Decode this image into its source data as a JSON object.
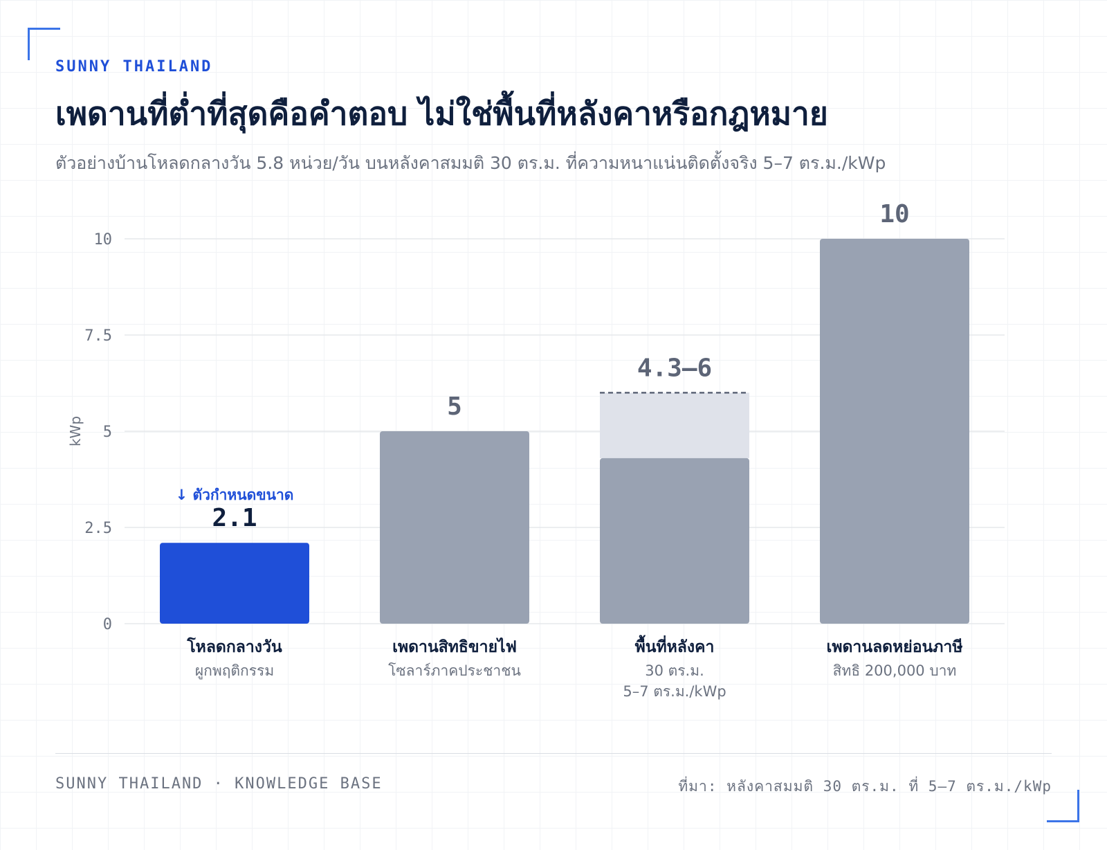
{
  "brand": "SUNNY THAILAND",
  "title": "เพดานที่ต่ำที่สุดคือคำตอบ ไม่ใช่พื้นที่หลังคาหรือกฎหมาย",
  "subtitle": "ตัวอย่างบ้านโหลดกลางวัน 5.8 หน่วย/วัน บนหลังคาสมมติ 30 ตร.ม. ที่ความหนาแน่นติดตั้งจริง 5–7 ตร.ม./kWp",
  "footer": {
    "left": "SUNNY THAILAND · KNOWLEDGE BASE",
    "right": "ที่มา: หลังคาสมมติ 30 ตร.ม. ที่ 5–7 ตร.ม./kWp"
  },
  "colors": {
    "highlight": "#1f4fd8",
    "bar": "#99a2b2",
    "range_band": "#dfe2ea",
    "grid": "#e6e8ec",
    "value_label": "#5d6577"
  },
  "chart_data": {
    "type": "bar",
    "ylabel": "kWp",
    "ylim": [
      0,
      10
    ],
    "yticks": [
      {
        "value": 0,
        "label": "0"
      },
      {
        "value": 2.5,
        "label": "2.5"
      },
      {
        "value": 5,
        "label": "5"
      },
      {
        "value": 7.5,
        "label": "7.5"
      },
      {
        "value": 10,
        "label": "10"
      }
    ],
    "grid": true,
    "bars": [
      {
        "category": "โหลดกลางวัน",
        "sublabel": [
          "ผูกพฤติกรรม"
        ],
        "value": 2.1,
        "value_label": "2.1",
        "highlight": true,
        "annotation": "↓ ตัวกำหนดขนาด"
      },
      {
        "category": "เพดานสิทธิขายไฟ",
        "sublabel": [
          "โซลาร์ภาคประชาชน"
        ],
        "value": 5,
        "value_label": "5",
        "highlight": false
      },
      {
        "category": "พื้นที่หลังคา",
        "sublabel": [
          "30 ตร.ม.",
          "5–7 ตร.ม./kWp"
        ],
        "value": 4.3,
        "range_max": 6,
        "value_label": "4.3–6",
        "highlight": false
      },
      {
        "category": "เพดานลดหย่อนภาษี",
        "sublabel": [
          "สิทธิ 200,000 บาท"
        ],
        "value": 10,
        "value_label": "10",
        "highlight": false
      }
    ]
  }
}
